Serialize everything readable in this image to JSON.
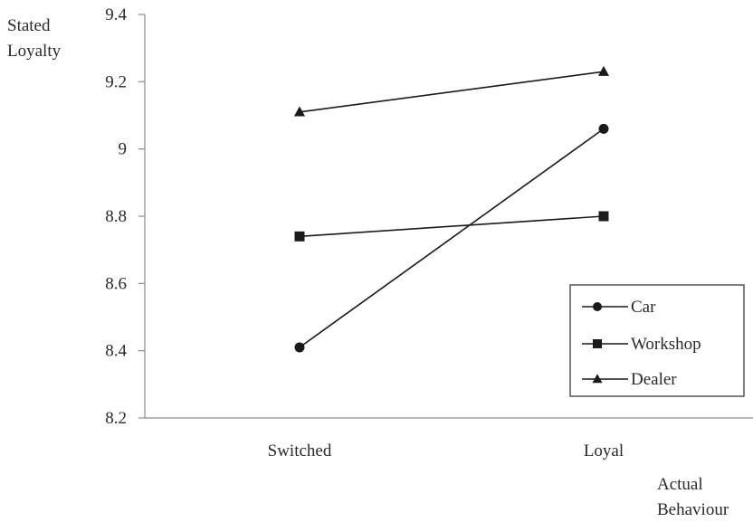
{
  "chart_data": {
    "type": "line",
    "title": "",
    "ylabel_lines": [
      "Stated",
      "Loyalty"
    ],
    "xlabel_lines": [
      "Actual",
      "Behaviour"
    ],
    "categories": [
      "Switched",
      "Loyal"
    ],
    "ylim": [
      8.2,
      9.4
    ],
    "yticks": [
      8.2,
      8.4,
      8.6,
      8.8,
      9,
      9.2,
      9.4
    ],
    "ytick_labels": [
      "8.2",
      "8.4",
      "8.6",
      "8.8",
      "9",
      "9.2",
      "9.4"
    ],
    "grid": false,
    "legend_position": "bottom-right",
    "series": [
      {
        "name": "Car",
        "marker": "circle",
        "values": [
          8.41,
          9.06
        ]
      },
      {
        "name": "Workshop",
        "marker": "square",
        "values": [
          8.74,
          8.8
        ]
      },
      {
        "name": "Dealer",
        "marker": "triangle",
        "values": [
          9.11,
          9.23
        ]
      }
    ],
    "colors": {
      "line": "#1a1a1a",
      "axis": "#8a8a8a",
      "text": "#2a2a2a"
    }
  }
}
